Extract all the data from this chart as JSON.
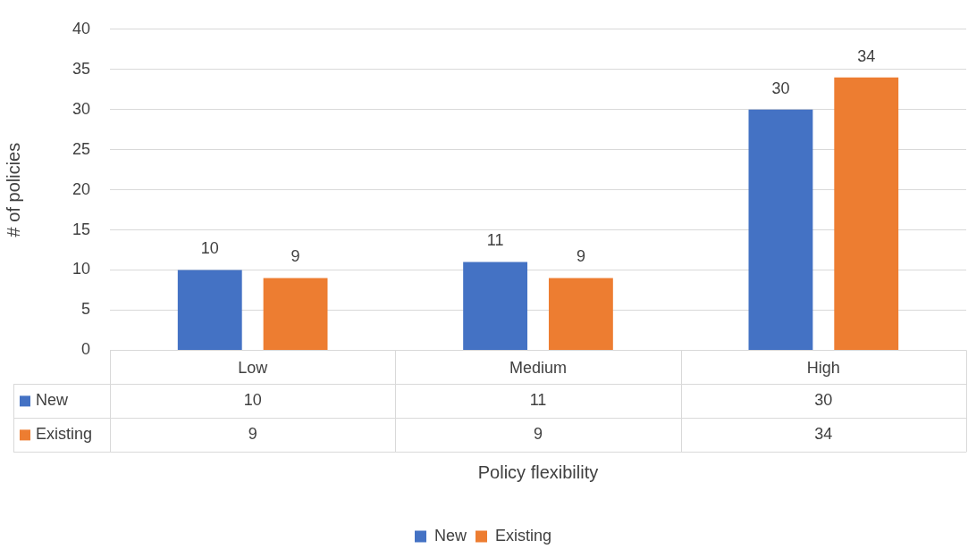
{
  "chart_data": {
    "type": "bar",
    "xlabel": "Policy flexibility",
    "ylabel": "# of policies",
    "categories": [
      "Low",
      "Medium",
      "High"
    ],
    "series": [
      {
        "name": "New",
        "color": "#4472c4",
        "values": [
          10,
          11,
          30
        ],
        "value_labels": [
          "10",
          "11",
          "30"
        ]
      },
      {
        "name": "Existing",
        "color": "#ed7d31",
        "values": [
          9,
          9,
          34
        ],
        "value_labels": [
          "9",
          "9",
          "34"
        ]
      }
    ],
    "annotations": [
      "10",
      "11",
      "30",
      "9",
      "9",
      "34"
    ],
    "ylim": [
      0,
      40
    ],
    "yticks": [
      0,
      5,
      10,
      15,
      20,
      25,
      30,
      35,
      40
    ],
    "grid": "y",
    "legend": "bottom",
    "data_labels": true
  }
}
